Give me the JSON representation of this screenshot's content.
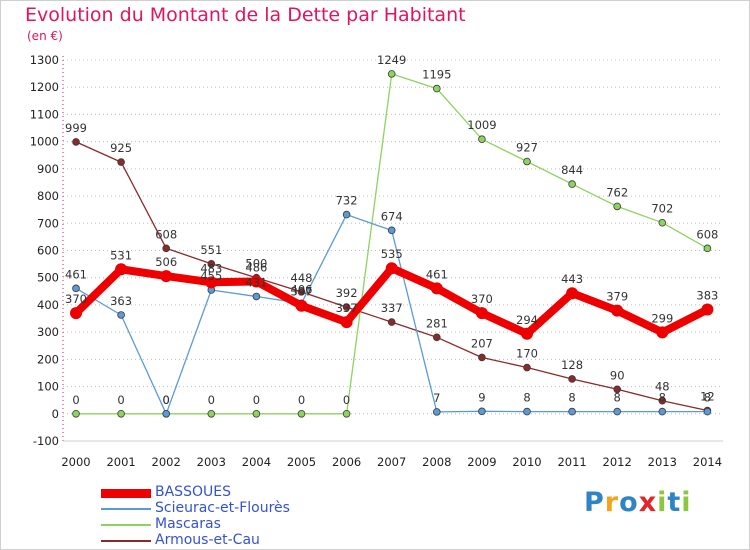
{
  "title": "Evolution du Montant de la Dette par Habitant",
  "unit": "(en €)",
  "logo": [
    "P",
    "r",
    "o",
    "x",
    "i",
    "t",
    "i"
  ],
  "colors": {
    "title": "#e1155f",
    "grid": "#bfbfbf",
    "logo": [
      "#2f85c4",
      "#f2a51c",
      "#2f85c4",
      "#e1262a",
      "#8dc63f",
      "#2f85c4",
      "#8dc63f"
    ]
  },
  "chart_data": {
    "type": "line",
    "x": [
      "2000",
      "2001",
      "2002",
      "2003",
      "2004",
      "2005",
      "2006",
      "2007",
      "2008",
      "2009",
      "2010",
      "2011",
      "2012",
      "2013",
      "2014"
    ],
    "ylim": [
      -100,
      1300
    ],
    "yticks": [
      "-100",
      "0",
      "100",
      "200",
      "300",
      "400",
      "500",
      "600",
      "700",
      "800",
      "900",
      "1000",
      "1100",
      "1200",
      "1300"
    ],
    "grid": "horizontal dotted",
    "legend_position": "bottom-left",
    "series": [
      {
        "name": "BASSOUES",
        "color": "#ee0000",
        "values": [
          370,
          531,
          506,
          483,
          486,
          397,
          337,
          535,
          461,
          370,
          294,
          443,
          379,
          299,
          383
        ],
        "labels": [
          "370",
          "531",
          "506",
          "483",
          "486",
          "397",
          "337",
          "535",
          "461",
          "370",
          "294",
          "443",
          "379",
          "299",
          "383"
        ]
      },
      {
        "name": "Scieurac-et-Flourès",
        "color": "#5b9bd5",
        "values": [
          461,
          363,
          0,
          455,
          431,
          406,
          732,
          674,
          7,
          9,
          8,
          8,
          8,
          8,
          8
        ],
        "labels": [
          "461",
          "363",
          "0",
          "455",
          "431",
          "406",
          "732",
          "674",
          "7",
          "9",
          "8",
          "8",
          "8",
          "8",
          "8"
        ]
      },
      {
        "name": "Mascaras",
        "color": "#8dd35f",
        "values": [
          0,
          0,
          0,
          0,
          0,
          0,
          0,
          1249,
          1195,
          1009,
          927,
          844,
          762,
          702,
          608
        ],
        "labels": [
          "0",
          "0",
          "0",
          "0",
          "0",
          "0",
          "0",
          "1249",
          "1195",
          "1009",
          "927",
          "844",
          "762",
          "702",
          "608"
        ]
      },
      {
        "name": "Armous-et-Cau",
        "color": "#8b2a2a",
        "values": [
          999,
          925,
          608,
          551,
          500,
          448,
          392,
          337,
          281,
          207,
          170,
          128,
          90,
          48,
          12
        ],
        "labels": [
          "999",
          "925",
          "608",
          "551",
          "500",
          "448",
          "392",
          "337",
          "281",
          "207",
          "170",
          "128",
          "90",
          "48",
          "12"
        ]
      }
    ]
  }
}
